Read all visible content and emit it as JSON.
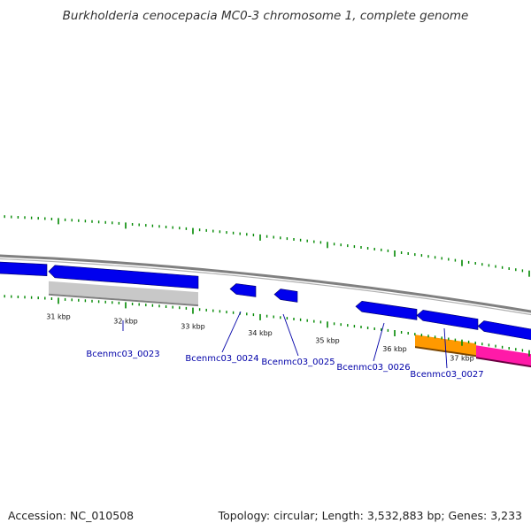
{
  "title": "Burkholderia cenocepacia MC0-3 chromosome 1, complete genome",
  "footer": {
    "accession": "Accession: NC_010508",
    "summary": "Topology: circular; Length: 3,532,883 bp; Genes: 3,233"
  },
  "kbp_ticks": [
    {
      "kb": 31,
      "label": "31 kbp"
    },
    {
      "kb": 32,
      "label": "32 kbp"
    },
    {
      "kb": 33,
      "label": "33 kbp"
    },
    {
      "kb": 34,
      "label": "34 kbp"
    },
    {
      "kb": 35,
      "label": "35 kbp"
    },
    {
      "kb": 36,
      "label": "36 kbp"
    },
    {
      "kb": 37,
      "label": "37 kbp"
    }
  ],
  "gene_labels": [
    {
      "name": "Bcenmc03_0023"
    },
    {
      "name": "Bcenmc03_0024"
    },
    {
      "name": "Bcenmc03_0025"
    },
    {
      "name": "Bcenmc03_0026"
    },
    {
      "name": "Bcenmc03_0027"
    }
  ],
  "colors": {
    "gene_blue": "#0000ee",
    "pseudo_gray": "#c8c8c8",
    "gene_orange": "#ff9900",
    "gene_magenta": "#ff1aa8",
    "tick_green": "#008800",
    "backbone_gray": "#808080",
    "label_blue": "#0000a8"
  }
}
